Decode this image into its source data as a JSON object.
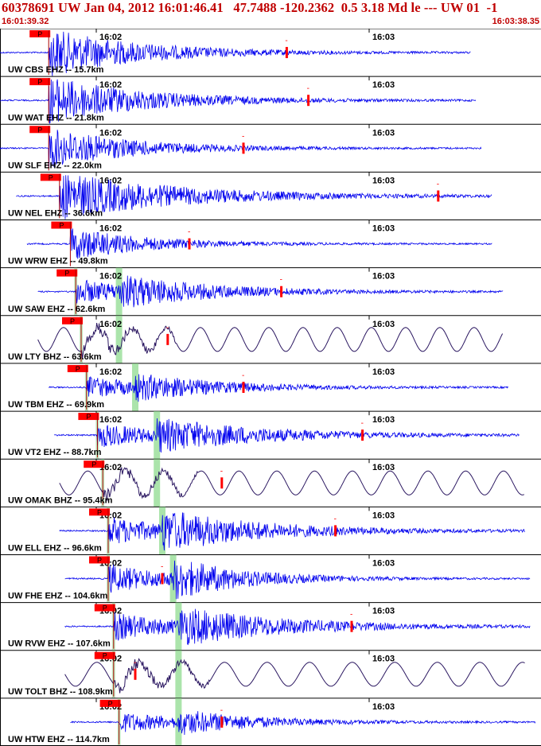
{
  "header": {
    "title": "60378691 UW Jan 04, 2012 16:01:46.41   47.7488 -120.2362  0.5 3.18 Md le --- UW 01  -1",
    "time_start": "16:01:39.32",
    "time_end": "16:03:38.35"
  },
  "colors": {
    "header_text": "#c00000",
    "trace_ehz": "#0000ee",
    "trace_bhz": "#2a1660",
    "pick_box": "#ff0000",
    "s_window": "#88d888",
    "separator": "#000000",
    "coda_marker": "#ff0000"
  },
  "chart_data": {
    "type": "seismogram",
    "minute_labels": [
      "16:02",
      "16:03"
    ],
    "pick_label": "P",
    "coda_label": "-",
    "stations": [
      {
        "label": "UW CBS EHZ -- 15.7km",
        "kind": "EHZ",
        "p_arrival": 0.09,
        "s_arrival": null,
        "coda_end": 0.53,
        "amplitude": 1.0,
        "trace_start": 0.0,
        "trace_end": 0.87
      },
      {
        "label": "UW WAT EHZ -- 21.8km",
        "kind": "EHZ",
        "p_arrival": 0.09,
        "s_arrival": null,
        "coda_end": 0.57,
        "amplitude": 1.0,
        "trace_start": 0.0,
        "trace_end": 0.88
      },
      {
        "label": "UW SLF EHZ -- 22.0km",
        "kind": "EHZ",
        "p_arrival": 0.09,
        "s_arrival": null,
        "coda_end": 0.45,
        "amplitude": 0.85,
        "trace_start": 0.0,
        "trace_end": 0.89
      },
      {
        "label": "UW NEL EHZ -- 36.6km",
        "kind": "EHZ",
        "p_arrival": 0.11,
        "s_arrival": null,
        "coda_end": 0.81,
        "amplitude": 1.0,
        "trace_start": 0.03,
        "trace_end": 0.91
      },
      {
        "label": "UW WRW EHZ -- 49.8km",
        "kind": "EHZ",
        "p_arrival": 0.13,
        "s_arrival": null,
        "coda_end": 0.35,
        "amplitude": 0.7,
        "trace_start": 0.05,
        "trace_end": 0.91
      },
      {
        "label": "UW SAW EHZ -- 62.6km",
        "kind": "EHZ",
        "p_arrival": 0.14,
        "s_arrival": 0.22,
        "coda_end": 0.52,
        "amplitude": 0.75,
        "trace_start": 0.07,
        "trace_end": 0.93
      },
      {
        "label": "UW LTY BHZ -- 63.6km",
        "kind": "BHZ",
        "p_arrival": 0.15,
        "s_arrival": 0.22,
        "coda_end": 0.31,
        "amplitude": 0.45,
        "trace_start": 0.07,
        "trace_end": 0.93
      },
      {
        "label": "UW TBM EHZ -- 69.9km",
        "kind": "EHZ",
        "p_arrival": 0.16,
        "s_arrival": 0.25,
        "coda_end": 0.45,
        "amplitude": 0.6,
        "trace_start": 0.09,
        "trace_end": 0.94
      },
      {
        "label": "UW VT2 EHZ -- 88.7km",
        "kind": "EHZ",
        "p_arrival": 0.18,
        "s_arrival": 0.29,
        "coda_end": 0.67,
        "amplitude": 0.75,
        "trace_start": 0.1,
        "trace_end": 0.96
      },
      {
        "label": "UW OMAK BHZ -- 95.4km",
        "kind": "BHZ",
        "p_arrival": 0.19,
        "s_arrival": 0.29,
        "coda_end": 0.41,
        "amplitude": 0.5,
        "trace_start": 0.11,
        "trace_end": 0.97
      },
      {
        "label": "UW ELL EHZ -- 96.6km",
        "kind": "EHZ",
        "p_arrival": 0.2,
        "s_arrival": 0.3,
        "coda_end": 0.62,
        "amplitude": 0.9,
        "trace_start": 0.11,
        "trace_end": 0.97
      },
      {
        "label": "UW FHE EHZ -- 104.6km",
        "kind": "EHZ",
        "p_arrival": 0.2,
        "s_arrival": 0.32,
        "coda_end": 0.3,
        "amplitude": 0.9,
        "trace_start": 0.12,
        "trace_end": 0.98
      },
      {
        "label": "UW RVW EHZ -- 107.6km",
        "kind": "EHZ",
        "p_arrival": 0.21,
        "s_arrival": 0.33,
        "coda_end": 0.65,
        "amplitude": 0.85,
        "trace_start": 0.12,
        "trace_end": 0.98
      },
      {
        "label": "UW TOLT BHZ -- 108.9km",
        "kind": "BHZ",
        "p_arrival": 0.21,
        "s_arrival": 0.33,
        "coda_end": 0.25,
        "amplitude": 0.5,
        "trace_start": 0.12,
        "trace_end": 0.97
      },
      {
        "label": "UW HTW EHZ -- 114.7km",
        "kind": "EHZ",
        "p_arrival": 0.22,
        "s_arrival": 0.33,
        "coda_end": 0.41,
        "amplitude": 0.55,
        "trace_start": 0.13,
        "trace_end": 0.99
      }
    ]
  }
}
